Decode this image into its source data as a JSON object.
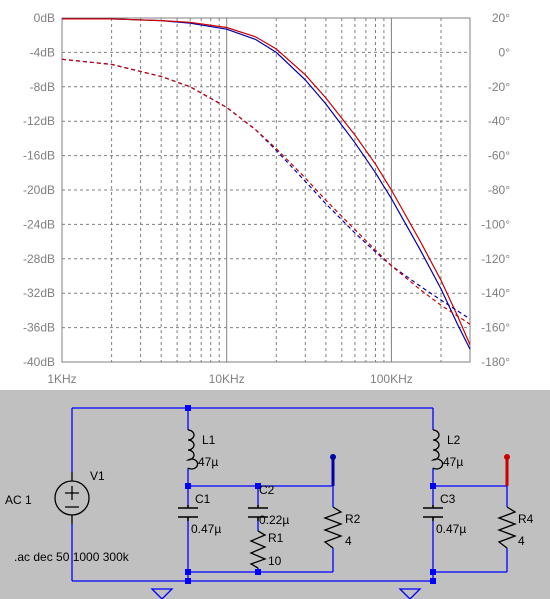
{
  "chart_data": {
    "type": "line",
    "x_scale": "log",
    "x_range_hz": [
      1000,
      300000
    ],
    "x_ticks": [
      {
        "value": 1000,
        "label": "1KHz"
      },
      {
        "value": 10000,
        "label": "10KHz"
      },
      {
        "value": 100000,
        "label": "100KHz"
      }
    ],
    "left_axis": {
      "unit": "dB",
      "range": [
        -40,
        0
      ],
      "ticks": [
        "0dB",
        "-4dB",
        "-8dB",
        "-12dB",
        "-16dB",
        "-20dB",
        "-24dB",
        "-28dB",
        "-32dB",
        "-36dB",
        "-40dB"
      ]
    },
    "right_axis": {
      "unit": "°",
      "range": [
        -180,
        20
      ],
      "ticks": [
        "20°",
        "0°",
        "-20°",
        "-40°",
        "-60°",
        "-80°",
        "-100°",
        "-120°",
        "-140°",
        "-160°",
        "-180°"
      ]
    },
    "grid": true,
    "series": [
      {
        "color": "#0000aa",
        "style": "solid",
        "axis": "magnitude_db",
        "x": [
          1000,
          2000,
          4000,
          6000,
          10000,
          15000,
          20000,
          30000,
          40000,
          60000,
          80000,
          100000,
          150000,
          200000,
          250000,
          300000
        ],
        "y": [
          -0.1,
          -0.1,
          -0.3,
          -0.6,
          -1.3,
          -2.5,
          -4.0,
          -7.2,
          -10.0,
          -14.5,
          -18.0,
          -21.0,
          -27.0,
          -31.5,
          -35.5,
          -38.5
        ]
      },
      {
        "color": "#cc0000",
        "style": "solid",
        "axis": "magnitude_db",
        "x": [
          1000,
          2000,
          4000,
          6000,
          10000,
          15000,
          20000,
          30000,
          40000,
          60000,
          80000,
          100000,
          150000,
          200000,
          250000,
          300000
        ],
        "y": [
          -0.1,
          -0.1,
          -0.3,
          -0.5,
          -1.1,
          -2.2,
          -3.6,
          -6.6,
          -9.3,
          -13.6,
          -17.0,
          -20.0,
          -26.0,
          -30.5,
          -34.5,
          -38.0
        ]
      },
      {
        "color": "#0000aa",
        "style": "dashed",
        "axis": "phase_deg",
        "x": [
          1000,
          2000,
          4000,
          6000,
          10000,
          15000,
          20000,
          30000,
          40000,
          60000,
          80000,
          100000,
          150000,
          200000,
          300000
        ],
        "y": [
          -4,
          -7,
          -14,
          -20,
          -32,
          -45,
          -57,
          -75,
          -88,
          -105,
          -116,
          -124,
          -136,
          -144,
          -155
        ]
      },
      {
        "color": "#cc0000",
        "style": "dashed",
        "axis": "phase_deg",
        "x": [
          1000,
          2000,
          4000,
          6000,
          10000,
          15000,
          20000,
          30000,
          40000,
          60000,
          80000,
          100000,
          150000,
          200000,
          300000
        ],
        "y": [
          -4,
          -7,
          -14,
          -20,
          -32,
          -45,
          -56,
          -73,
          -86,
          -103,
          -115,
          -124,
          -138,
          -147,
          -158
        ]
      }
    ]
  },
  "schematic": {
    "components": {
      "L1": {
        "name": "L1",
        "value": "47µ"
      },
      "L2": {
        "name": "L2",
        "value": "47µ"
      },
      "C1": {
        "name": "C1",
        "value": "0.47µ"
      },
      "C2": {
        "name": "C2",
        "value": "0.22µ"
      },
      "C3": {
        "name": "C3",
        "value": "0.47µ"
      },
      "R1": {
        "name": "R1",
        "value": "10"
      },
      "R2": {
        "name": "R2",
        "value": "4"
      },
      "R4": {
        "name": "R4",
        "value": "4"
      },
      "V1": {
        "name": "V1",
        "value": "AC 1"
      }
    },
    "directive": ".ac dec 50 1000 300k",
    "colors": {
      "wire": "#0000ff",
      "probe_blue": "#0000aa",
      "probe_red": "#cc0000",
      "body": "#000000"
    }
  }
}
